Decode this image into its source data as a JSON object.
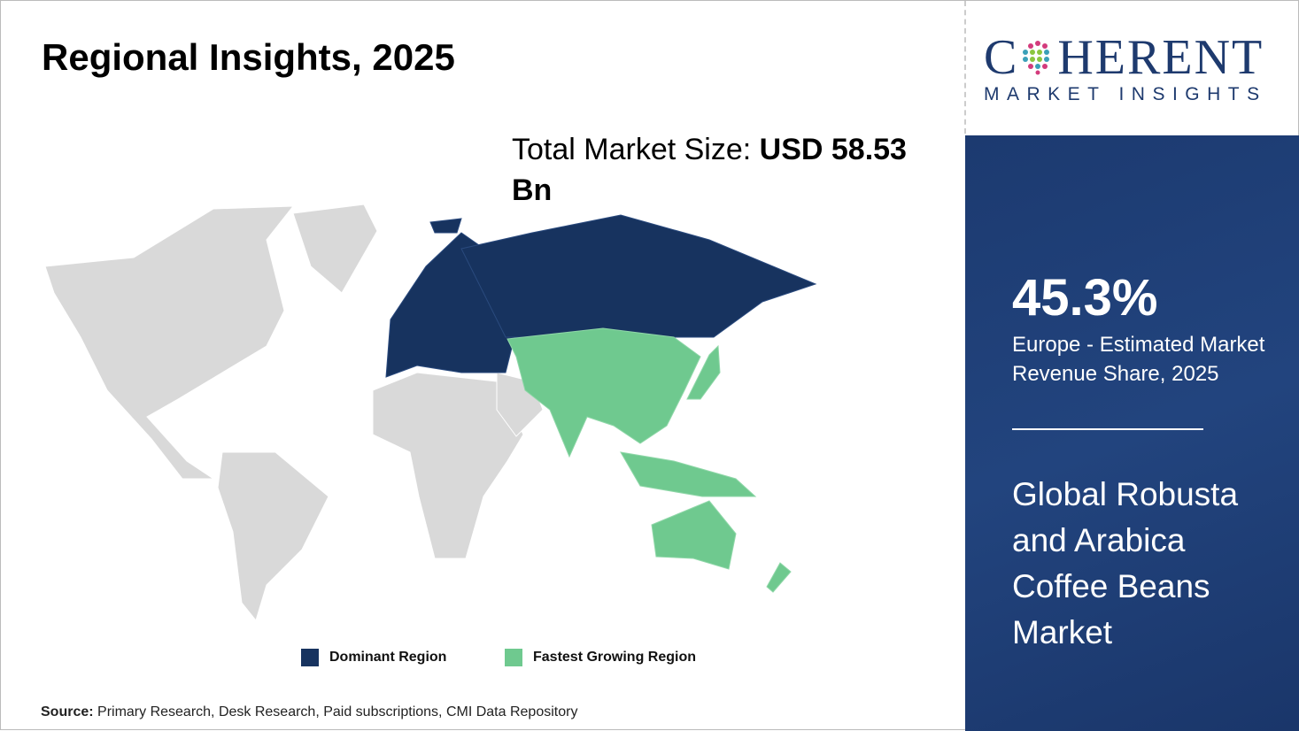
{
  "header": {
    "title": "Regional Insights, 2025"
  },
  "total_market": {
    "label": "Total Market Size: ",
    "value": "USD 58.53 Bn"
  },
  "map": {
    "colors": {
      "dominant": "#17335f",
      "fastest": "#6fc98f",
      "other": "#d9d9d9"
    },
    "dominant_region": "Europe",
    "fastest_growing_region": "Asia Pacific"
  },
  "legend": [
    {
      "label": "Dominant Region",
      "color": "#17335f"
    },
    {
      "label": "Fastest Growing Region",
      "color": "#6fc98f"
    }
  ],
  "source": {
    "label": "Source:",
    "text": " Primary Research, Desk Research, Paid subscriptions, CMI Data Repository"
  },
  "logo": {
    "main_left": "C",
    "main_right": "HERENT",
    "sub": "MARKET INSIGHTS"
  },
  "panel": {
    "percent": "45.3%",
    "percent_desc": "Europe - Estimated Market Revenue Share, 2025",
    "market_name": "Global Robusta and Arabica Coffee Beans Market",
    "background": "#1f3d73"
  }
}
